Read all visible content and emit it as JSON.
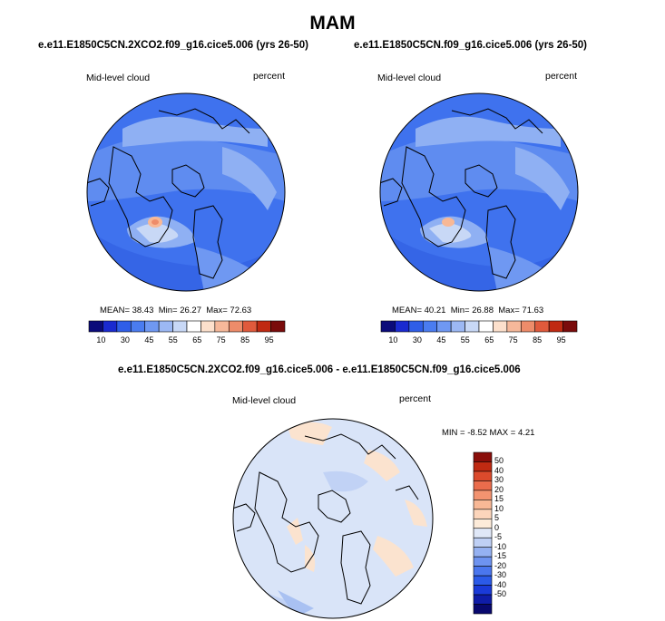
{
  "figure": {
    "season": "MAM"
  },
  "panels": [
    {
      "title": "e.e11.E1850C5CN.2XCO2.f09_g16.cice5.006 (yrs 26-50)",
      "variable": "Mid-level cloud",
      "units": "percent",
      "mean": "38.43",
      "min": "26.27",
      "max": "72.63"
    },
    {
      "title": "e.e11.E1850C5CN.f09_g16.cice5.006 (yrs 26-50)",
      "variable": "Mid-level cloud",
      "units": "percent",
      "mean": "40.21",
      "min": "26.88",
      "max": "71.63"
    }
  ],
  "difference": {
    "title": "e.e11.E1850C5CN.2XCO2.f09_g16.cice5.006 - e.e11.E1850C5CN.f09_g16.cice5.006",
    "variable": "Mid-level cloud",
    "units": "percent",
    "min": "-8.52",
    "max": "4.21"
  },
  "labels": {
    "mean_label": "MEAN=",
    "min_label": "Min=",
    "max_label": "Max=",
    "diff_min_label": "MIN =",
    "diff_max_label": "MAX ="
  },
  "colorbar_abs": {
    "colors": [
      "#0b0b7a",
      "#1a2ad0",
      "#2f5ee8",
      "#4a7cf0",
      "#6f98f2",
      "#9cb8f4",
      "#c8d8f6",
      "#ffffff",
      "#fde0cc",
      "#f6b89a",
      "#ee8c6a",
      "#e05a3c",
      "#c02a12",
      "#7a0b0b"
    ],
    "ticks": [
      "10",
      "30",
      "45",
      "55",
      "65",
      "75",
      "85",
      "95"
    ]
  },
  "colorbar_diff": {
    "colors": [
      "#08086e",
      "#0f1ca8",
      "#1a3ad8",
      "#2b5ae8",
      "#4a76ee",
      "#6e93f0",
      "#95b1f2",
      "#bfd0f5",
      "#e0e8f8",
      "#fdebd9",
      "#fcd5bb",
      "#f8b896",
      "#f39370",
      "#ea6c4c",
      "#dc4a2c",
      "#c02a12",
      "#8a0e0a"
    ],
    "ticks": [
      "-50",
      "-40",
      "-30",
      "-20",
      "-15",
      "-10",
      "-5",
      "0",
      "5",
      "10",
      "15",
      "20",
      "30",
      "40",
      "50"
    ]
  }
}
